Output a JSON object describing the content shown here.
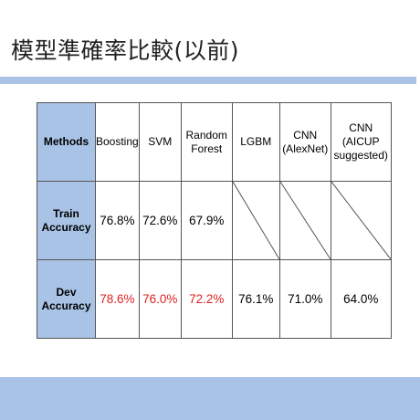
{
  "slide": {
    "title": "模型準確率比較(以前)"
  },
  "table": {
    "corner_label": "Methods",
    "columns": [
      {
        "lines": [
          "Boosting"
        ]
      },
      {
        "lines": [
          "SVM"
        ]
      },
      {
        "lines": [
          "Random",
          "Forest"
        ]
      },
      {
        "lines": [
          "LGBM"
        ]
      },
      {
        "lines": [
          "CNN",
          "(AlexNet)"
        ]
      },
      {
        "lines": [
          "CNN",
          "(AICUP",
          "suggested)"
        ]
      }
    ],
    "rows": [
      {
        "label_lines": [
          "Train",
          "Accuracy"
        ],
        "cells": [
          {
            "value": "76.8%",
            "highlight": false
          },
          {
            "value": "72.6%",
            "highlight": false
          },
          {
            "value": "67.9%",
            "highlight": false
          },
          {
            "value": null,
            "highlight": false
          },
          {
            "value": null,
            "highlight": false
          },
          {
            "value": null,
            "highlight": false
          }
        ]
      },
      {
        "label_lines": [
          "Dev",
          "Accuracy"
        ],
        "cells": [
          {
            "value": "78.6%",
            "highlight": true
          },
          {
            "value": "76.0%",
            "highlight": true
          },
          {
            "value": "72.2%",
            "highlight": true
          },
          {
            "value": "76.1%",
            "highlight": false
          },
          {
            "value": "71.0%",
            "highlight": false
          },
          {
            "value": "64.0%",
            "highlight": false
          }
        ]
      }
    ]
  },
  "colors": {
    "header_fill": "#a9c3e6",
    "accent_bar": "#a9c3e6",
    "highlight_text": "#e02020",
    "border": "#555555"
  }
}
